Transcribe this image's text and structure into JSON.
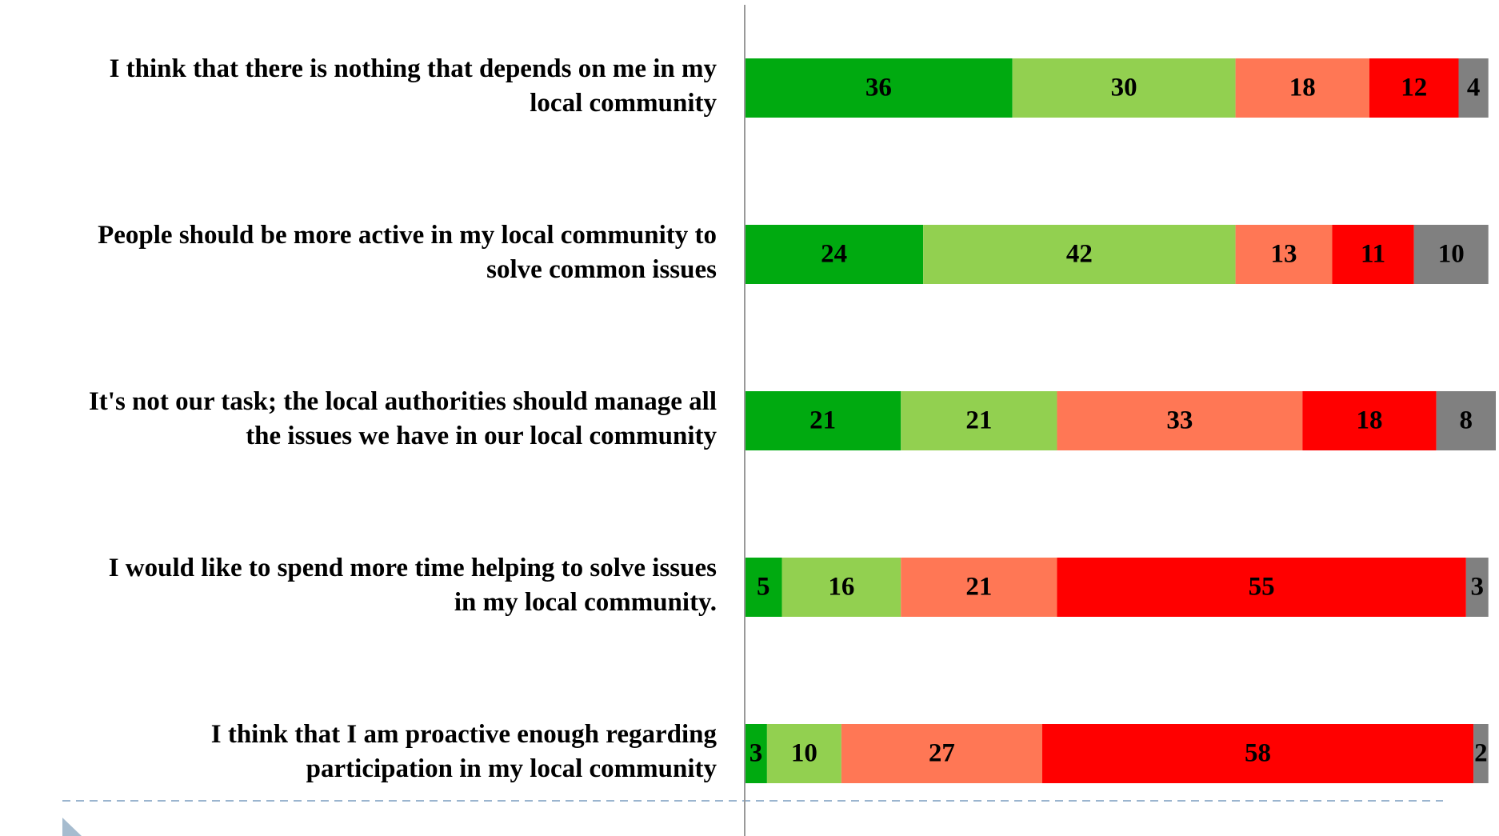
{
  "chart_data": {
    "type": "stacked_bar_horizontal",
    "categories": [
      [
        "I think that there is nothing that depends on me in my",
        "local community"
      ],
      [
        "People should be more active in my local community to",
        "solve common issues"
      ],
      [
        "It's not our task; the local authorities should manage all",
        "the issues we have in our local community"
      ],
      [
        "I would like to spend more time helping to solve issues",
        "in my local community."
      ],
      [
        "I think that I am proactive enough regarding",
        "participation in my local community"
      ]
    ],
    "series": [
      {
        "color": "#00aa10",
        "values": [
          36,
          24,
          21,
          5,
          3
        ]
      },
      {
        "color": "#92d050",
        "values": [
          30,
          42,
          21,
          16,
          10
        ]
      },
      {
        "color": "#ff7755",
        "values": [
          18,
          13,
          33,
          21,
          27
        ]
      },
      {
        "color": "#ff0000",
        "values": [
          12,
          11,
          18,
          55,
          58
        ]
      },
      {
        "color": "#808080",
        "values": [
          4,
          10,
          8,
          3,
          2
        ]
      }
    ],
    "xlim": [
      0,
      101
    ]
  }
}
